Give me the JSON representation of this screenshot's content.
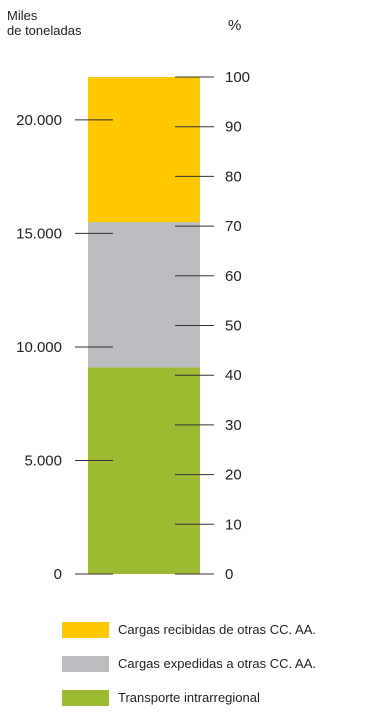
{
  "chart_data": {
    "type": "bar",
    "stacked": true,
    "left_axis": {
      "title_line1": "Miles",
      "title_line2": "de toneladas",
      "ticks": [
        0,
        5000,
        10000,
        15000,
        20000
      ],
      "tick_labels": [
        "0",
        "5.000",
        "10.000",
        "15.000",
        "20.000"
      ],
      "range": [
        0,
        21890
      ]
    },
    "right_axis": {
      "title": "%",
      "ticks": [
        0,
        10,
        20,
        30,
        40,
        50,
        60,
        70,
        80,
        90,
        100
      ],
      "tick_labels": [
        "0",
        "10",
        "20",
        "30",
        "40",
        "50",
        "60",
        "70",
        "80",
        "90",
        "100"
      ],
      "range": [
        0,
        100
      ]
    },
    "series": [
      {
        "name": "Transporte intrarregional",
        "value": 9100,
        "percent": 41.6,
        "color": "#9dbb32"
      },
      {
        "name": "Cargas expedidas a otras CC. AA.",
        "value": 6400,
        "percent": 29.2,
        "color": "#bbbcbf"
      },
      {
        "name": "Cargas recibidas de otras CC. AA.",
        "value": 6390,
        "percent": 29.2,
        "color": "#ffc800"
      }
    ],
    "legend": {
      "position": "bottom-left",
      "order": [
        "Cargas recibidas de otras CC. AA.",
        "Cargas expedidas a otras CC. AA.",
        "Transporte intrarregional"
      ]
    },
    "grid": false
  }
}
